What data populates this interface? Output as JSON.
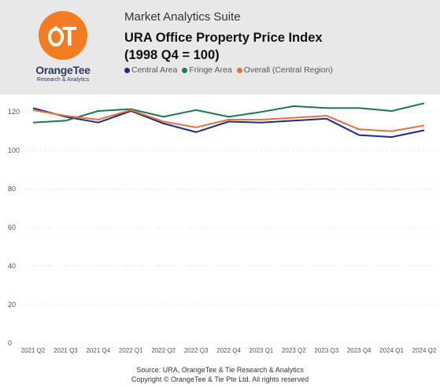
{
  "header": {
    "brand_name": "OrangeTee",
    "brand_tagline": "Research & Analytics",
    "logo_text": "OT",
    "suite_name": "Market Analytics Suite",
    "title_line1": "URA Office Property Price Index",
    "title_line2": "(1998 Q4 = 100)"
  },
  "colors": {
    "accent": "#f37b20",
    "header_bg": "#e8e8e8"
  },
  "footer": {
    "source": "Source: URA, OrangeTee & Tie Research & Analytics",
    "copyright": "Copyright © OrangeTee & Tie Pte Ltd. All rights reserved"
  },
  "chart_data": {
    "type": "line",
    "title": "URA Office Property Price Index",
    "categories": [
      "2021 Q2",
      "2021 Q3",
      "2021 Q4",
      "2022 Q1",
      "2022 Q2",
      "2022 Q3",
      "2022 Q4",
      "2023 Q1",
      "2023 Q2",
      "2023 Q3",
      "2023 Q4",
      "2024 Q1",
      "2024 Q2"
    ],
    "series": [
      {
        "name": "Central Area",
        "color": "#1f2b8c",
        "values": [
          122.0,
          117.5,
          114.5,
          120.5,
          114.0,
          109.5,
          115.0,
          114.5,
          115.5,
          116.5,
          108.0,
          107.0,
          110.5
        ]
      },
      {
        "name": "Fringe Area",
        "color": "#1a7a52",
        "values": [
          114.5,
          115.5,
          120.5,
          121.5,
          117.5,
          121.0,
          117.5,
          120.0,
          123.0,
          122.0,
          122.0,
          120.5,
          124.5
        ]
      },
      {
        "name": "Overall (Central Region)",
        "color": "#e8703a",
        "values": [
          121.0,
          118.0,
          116.0,
          121.0,
          115.0,
          112.0,
          116.0,
          116.0,
          117.0,
          118.0,
          111.0,
          110.0,
          113.0
        ]
      }
    ],
    "yticks": [
      0,
      20,
      40,
      60,
      80,
      100,
      120
    ],
    "ylim": [
      0,
      125
    ],
    "grid": true,
    "legend_position": "top"
  }
}
